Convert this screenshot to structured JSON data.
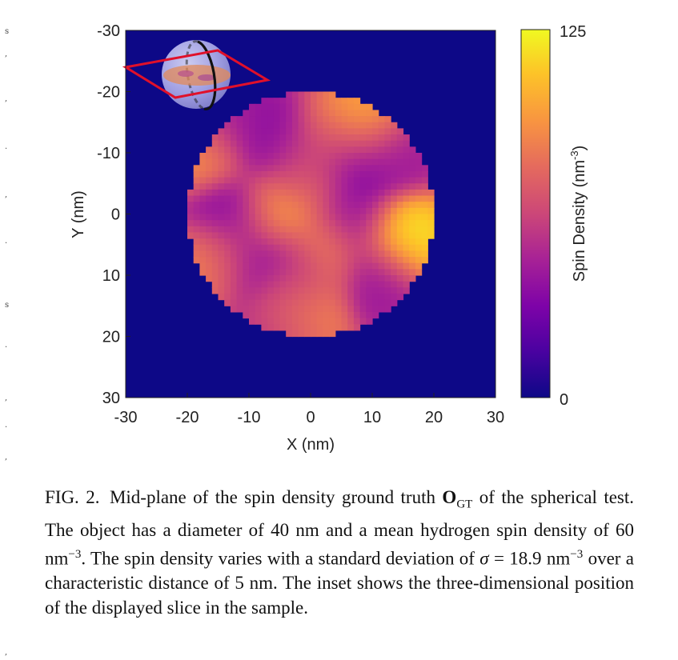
{
  "chart_data": {
    "type": "heatmap",
    "title": "",
    "xlabel": "X (nm)",
    "ylabel": "Y (nm)",
    "xlim": [
      -30,
      30
    ],
    "ylim": [
      -30,
      30
    ],
    "y_inverted": true,
    "x_ticks": [
      -30,
      -20,
      -10,
      0,
      10,
      20,
      30
    ],
    "y_ticks": [
      -30,
      -20,
      -10,
      0,
      10,
      20,
      30
    ],
    "x_tick_labels": [
      "-30",
      "-20",
      "-10",
      "0",
      "10",
      "20",
      "30"
    ],
    "y_tick_labels": [
      "-30",
      "-20",
      "-10",
      "0",
      "10",
      "20",
      "30"
    ],
    "grid": false,
    "colormap": "plasma",
    "background_color": "#0d0887",
    "colorbar": {
      "label_main": "Spin Density (nm",
      "label_sup": "-3",
      "label_close": ")",
      "min": 0,
      "max": 125,
      "min_label": "0",
      "max_label": "125"
    },
    "object": {
      "shape": "disk",
      "center": [
        0,
        0
      ],
      "diameter_nm": 40,
      "mean_density": 60,
      "std_density": 18.9,
      "correlation_length_nm": 5,
      "pixel_nm": 1.0,
      "features": [
        {
          "x": 6,
          "y": -8,
          "v": 20
        },
        {
          "x": -8,
          "y": -13,
          "v": 35
        },
        {
          "x": -14,
          "y": -15,
          "v": 45
        },
        {
          "x": -13,
          "y": 0,
          "v": 30
        },
        {
          "x": -10,
          "y": 7,
          "v": 35
        },
        {
          "x": -3,
          "y": 10,
          "v": 28
        },
        {
          "x": 7,
          "y": 1,
          "v": 40
        },
        {
          "x": 11,
          "y": 10,
          "v": 40
        },
        {
          "x": 13,
          "y": -10,
          "v": 42
        },
        {
          "x": -2,
          "y": -9,
          "v": 42
        },
        {
          "x": -4,
          "y": 17,
          "v": 40
        },
        {
          "x": 15,
          "y": 4,
          "v": 125
        },
        {
          "x": 9,
          "y": -15,
          "v": 105
        },
        {
          "x": -2,
          "y": 16,
          "v": 110
        },
        {
          "x": -6,
          "y": 0,
          "v": 98
        },
        {
          "x": -17,
          "y": -10,
          "v": 95
        },
        {
          "x": 2,
          "y": 6,
          "v": 92
        },
        {
          "x": -15,
          "y": 7,
          "v": 92
        },
        {
          "x": 0,
          "y": -6,
          "v": 88
        },
        {
          "x": 4,
          "y": -12,
          "v": 86
        },
        {
          "x": -2,
          "y": 12,
          "v": 84
        }
      ]
    },
    "inset": {
      "type": "sphere-slice",
      "description_colors": {
        "sphere": "#a9a8e8",
        "plane": "#e0102a",
        "ring": "#111111"
      }
    }
  },
  "caption": {
    "label": "FIG. 2.",
    "t1": "Mid-plane of the spin density ground truth",
    "sym_O": "O",
    "sub_GT": "GT",
    "t2": "of the spherical test. The object has a diameter of 40 nm and a mean hydrogen spin density of 60 nm",
    "sup1": "−3",
    "t3": ". The spin density varies with a standard deviation of",
    "sym_sigma": "σ",
    "t4": "= 18.9 nm",
    "sup2": "−3",
    "t5": "over a characteristic distance of 5 nm. The inset shows the three-dimensional position of the displayed slice in the sample."
  }
}
